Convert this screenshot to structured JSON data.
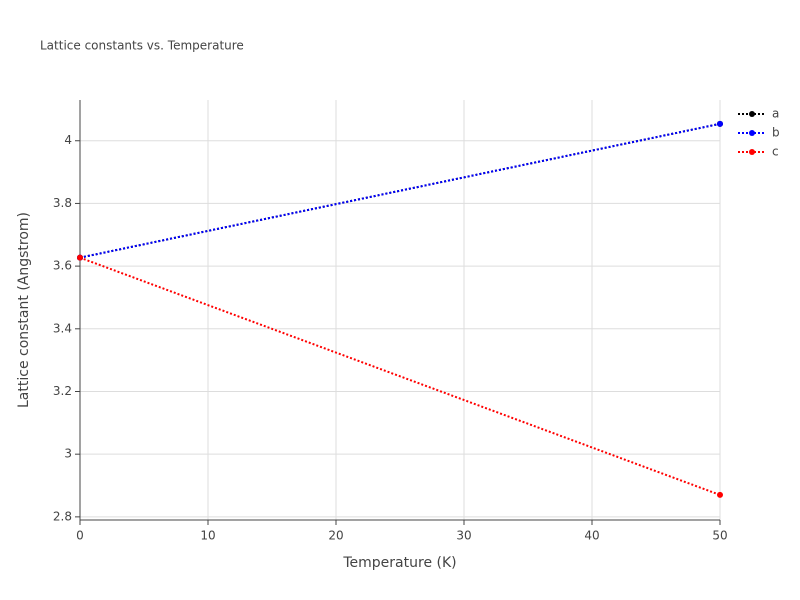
{
  "chart_data": {
    "type": "line",
    "title": "Lattice constants vs. Temperature",
    "x_label": "Temperature (K)",
    "y_label": "Lattice constant (Angstrom)",
    "x": [
      0,
      50
    ],
    "series": [
      {
        "name": "a",
        "color": "#000000",
        "values": [
          3.627,
          4.054
        ]
      },
      {
        "name": "b",
        "color": "#0000ff",
        "values": [
          3.627,
          4.054
        ]
      },
      {
        "name": "c",
        "color": "#ff0000",
        "values": [
          3.627,
          2.87
        ]
      }
    ],
    "xlim": [
      0,
      50
    ],
    "xticks": [
      0,
      10,
      20,
      30,
      40,
      50
    ],
    "ylim": [
      2.79,
      4.13
    ],
    "yticks": [
      2.8,
      3,
      3.2,
      3.4,
      3.6,
      3.8,
      4
    ],
    "grid": true,
    "line_style": "dotted",
    "legend": "right"
  }
}
